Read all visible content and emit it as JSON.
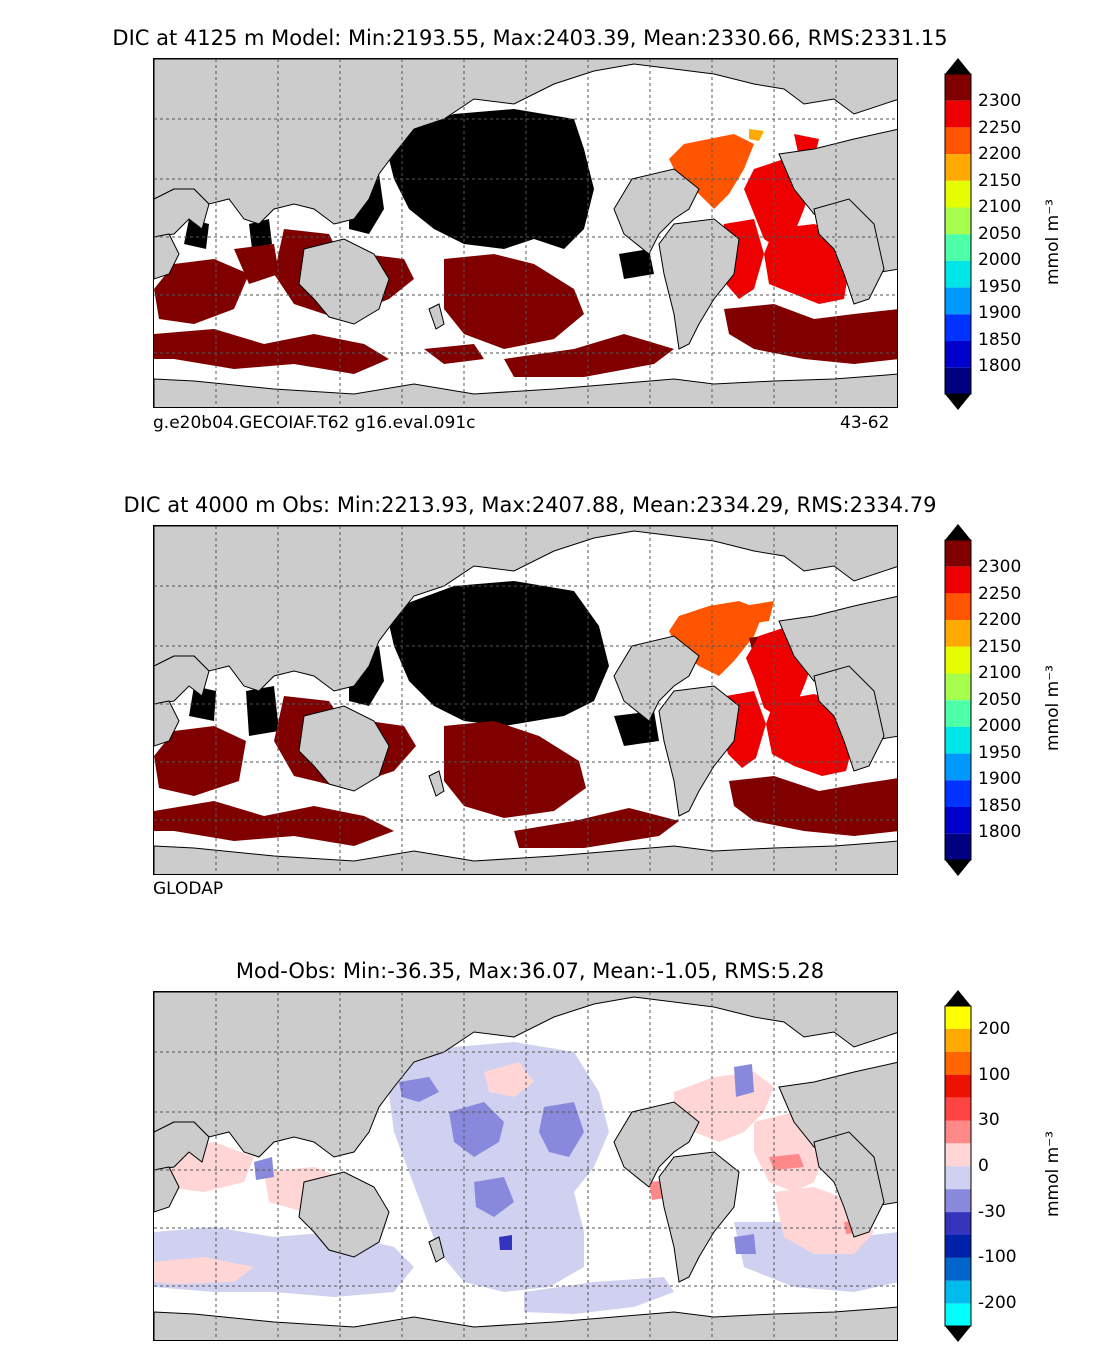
{
  "panels": [
    {
      "id": "model",
      "title": "DIC at 4125 m Model: Min:2193.55, Max:2403.39, Mean:2330.66, RMS:2331.15",
      "note_left": "g.e20b04.GECOIAF.T62 g16.eval.091c",
      "note_right": "43-62",
      "colorbar": {
        "ticks": [
          "2300",
          "2250",
          "2200",
          "2150",
          "2100",
          "2050",
          "2000",
          "1950",
          "1900",
          "1850",
          "1800"
        ],
        "unit": "mmol m⁻³",
        "colors": [
          "#000080",
          "#0000cd",
          "#0033ff",
          "#0099ff",
          "#00e5e5",
          "#4dffa6",
          "#a6ff4d",
          "#e5ff00",
          "#ffaa00",
          "#ff5500",
          "#ee0000",
          "#800000"
        ],
        "over_color": "#000000",
        "under_color": "#000000"
      }
    },
    {
      "id": "obs",
      "title": "DIC at 4000 m Obs: Min:2213.93, Max:2407.88, Mean:2334.29, RMS:2334.79",
      "note_left": "GLODAP",
      "note_right": "",
      "colorbar": {
        "ticks": [
          "2300",
          "2250",
          "2200",
          "2150",
          "2100",
          "2050",
          "2000",
          "1950",
          "1900",
          "1850",
          "1800"
        ],
        "unit": "mmol m⁻³",
        "colors": [
          "#000080",
          "#0000cd",
          "#0033ff",
          "#0099ff",
          "#00e5e5",
          "#4dffa6",
          "#a6ff4d",
          "#e5ff00",
          "#ffaa00",
          "#ff5500",
          "#ee0000",
          "#800000"
        ],
        "over_color": "#000000",
        "under_color": "#000000"
      }
    },
    {
      "id": "diff",
      "title": "Mod-Obs: Min:-36.35, Max:36.07, Mean:-1.05, RMS:5.28",
      "note_left": "",
      "note_right": "",
      "colorbar": {
        "ticks": [
          "200",
          "100",
          "30",
          "0",
          "-30",
          "-100",
          "-200"
        ],
        "unit": "mmol m⁻³",
        "colors": [
          "#00ffff",
          "#00bbee",
          "#0066cc",
          "#0022aa",
          "#3333bb",
          "#8888dd",
          "#d0d0f0",
          "#ffd5d5",
          "#ff8888",
          "#ff4444",
          "#ee1100",
          "#ff6600",
          "#ffaa00",
          "#ffff00"
        ],
        "over_color": "#000000",
        "under_color": "#000000"
      }
    }
  ],
  "colors": {
    "land": "#cccccc",
    "ocean_missing": "#ffffff",
    "grid": "#555555"
  }
}
